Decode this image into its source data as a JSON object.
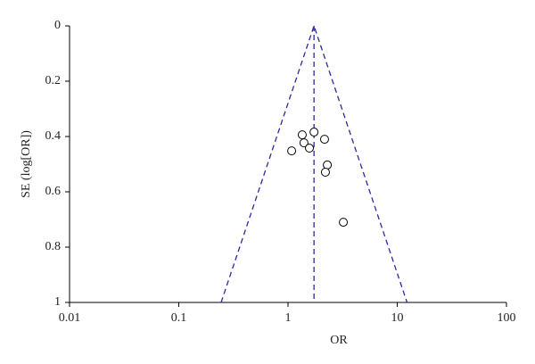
{
  "chart_data": {
    "type": "scatter",
    "x_label": "OR",
    "y_label": "SE (log[OR])",
    "xscale": "log",
    "invert_y": true,
    "x": [
      1.73,
      1.35,
      1.4,
      2.16,
      1.57,
      1.08,
      2.29,
      2.2,
      3.21
    ],
    "values": [
      0.384,
      0.394,
      0.423,
      0.41,
      0.442,
      0.452,
      0.503,
      0.529,
      0.71
    ],
    "marker_color": "#000000",
    "funnel": {
      "x": [
        0.244,
        1.73,
        12.3
      ],
      "y": [
        1,
        0,
        1
      ]
    },
    "pooled": {
      "x": [
        1.73,
        1.73
      ],
      "y": [
        0,
        1
      ]
    },
    "line_color": "#2a2a9c",
    "xlim": [
      0.01,
      100
    ],
    "xticks": [
      0.01,
      0.1,
      1,
      10,
      100
    ],
    "ylim": [
      0,
      1
    ],
    "yticks": [
      0,
      0.2,
      0.4,
      0.6,
      0.8,
      1
    ]
  }
}
